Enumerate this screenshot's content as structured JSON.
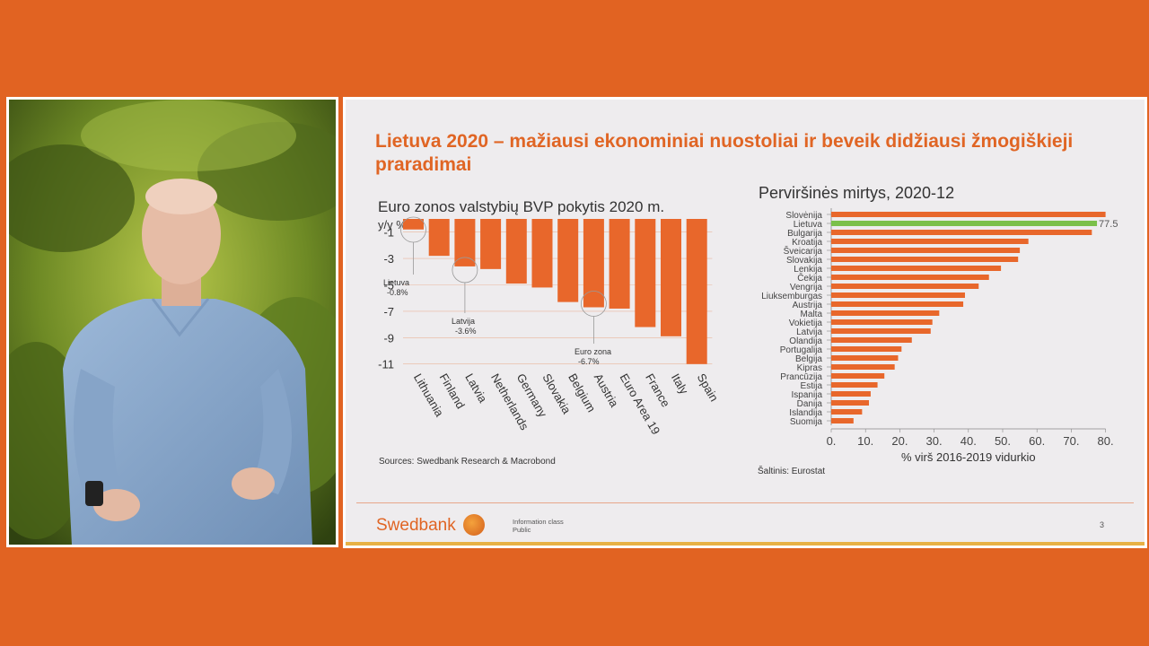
{
  "slide": {
    "title": "Lietuva 2020 – mažiausi ekonominiai nuostoliai ir beveik didžiausi žmogiškieji praradimai",
    "left_chart_title": "Euro zonos valstybių BVP pokytis 2020 m.",
    "left_chart_unit": "y/y %",
    "left_source": "Sources: Swedbank Research & Macrobond",
    "right_chart_title": "Perviršinės mirtys, 2020-12",
    "right_source": "Šaltinis: Eurostat",
    "logo": "Swedbank",
    "info_class_label": "Information class",
    "info_class_value": "Public",
    "page_number": "3"
  },
  "colors": {
    "background": "#E16322",
    "brand_orange": "#E06524",
    "bar_orange": "#E8672B",
    "highlight_green": "#7BC04A"
  },
  "presenter": {
    "description_icon": "presenter-video"
  },
  "chart_data": [
    {
      "type": "bar",
      "title": "Euro zonos valstybių BVP pokytis 2020 m.",
      "ylabel": "y/y %",
      "categories": [
        "Lithuania",
        "Finland",
        "Latvia",
        "Netherlands",
        "Germany",
        "Slovakia",
        "Belgium",
        "Austria",
        "Euro Area 19",
        "France",
        "Italy",
        "Spain"
      ],
      "values": [
        -0.8,
        -2.8,
        -3.6,
        -3.8,
        -4.9,
        -5.2,
        -6.3,
        -6.7,
        -6.8,
        -8.2,
        -8.9,
        -11.0
      ],
      "ylim": [
        -11,
        -1
      ],
      "yticks": [
        -1,
        -3,
        -5,
        -7,
        -9,
        -11
      ],
      "annotations": [
        {
          "label": "Lietuva",
          "value": "-0.8%",
          "category": "Lithuania"
        },
        {
          "label": "Latvija",
          "value": "-3.6%",
          "category": "Latvia"
        },
        {
          "label": "Euro zona",
          "value": "-6.7%",
          "category": "Austria"
        }
      ]
    },
    {
      "type": "bar",
      "orientation": "horizontal",
      "title": "Perviršinės mirtys, 2020-12",
      "xlabel": "% virš 2016-2019 vidurkio",
      "categories": [
        "Slovėnija",
        "Lietuva",
        "Bulgarija",
        "Kroatija",
        "Šveicarija",
        "Slovakija",
        "Lenkija",
        "Čekija",
        "Vengrija",
        "Liuksemburgas",
        "Austrija",
        "Malta",
        "Vokietija",
        "Latvija",
        "Olandija",
        "Portugalija",
        "Belgija",
        "Kipras",
        "Prancūzija",
        "Estija",
        "Ispanija",
        "Danija",
        "Islandija",
        "Suomija"
      ],
      "values": [
        80.0,
        77.5,
        76.0,
        57.5,
        55.0,
        54.5,
        49.5,
        46.0,
        43.0,
        39.0,
        38.5,
        31.5,
        29.5,
        29.0,
        23.5,
        20.5,
        19.5,
        18.5,
        15.5,
        13.5,
        11.5,
        11.0,
        9.0,
        6.5
      ],
      "highlight": "Lietuva",
      "highlight_label": "77.5",
      "xlim": [
        0,
        80
      ],
      "xticks": [
        "0.",
        "10.",
        "20.",
        "30.",
        "40.",
        "50.",
        "60.",
        "70.",
        "80."
      ]
    }
  ]
}
